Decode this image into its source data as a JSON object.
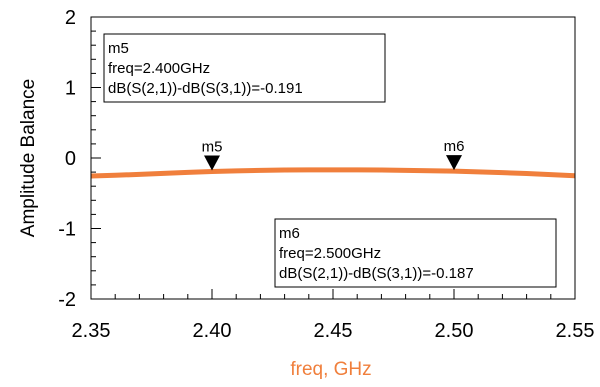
{
  "chart_data": {
    "type": "line",
    "xlabel": "freq, GHz",
    "ylabel": "Amplitude Balance",
    "xlim": [
      2.35,
      2.55
    ],
    "ylim": [
      -2,
      2
    ],
    "x_ticks": [
      2.35,
      2.4,
      2.45,
      2.5,
      2.55
    ],
    "x_tick_labels": [
      "2.35",
      "2.40",
      "2.45",
      "2.50",
      "2.55"
    ],
    "y_ticks": [
      2,
      1,
      0,
      -1,
      -2
    ],
    "y_tick_labels": [
      "2",
      "1",
      "0",
      "-1",
      "-2"
    ],
    "grid": false,
    "colors": {
      "series": "#f07f3c",
      "xlabel": "#f07f3c",
      "axis": "#000000"
    },
    "series": [
      {
        "x": [
          2.35,
          2.36,
          2.37,
          2.38,
          2.39,
          2.4,
          2.41,
          2.42,
          2.43,
          2.44,
          2.45,
          2.46,
          2.47,
          2.48,
          2.49,
          2.5,
          2.51,
          2.52,
          2.53,
          2.54,
          2.55
        ],
        "values": [
          -0.255,
          -0.245,
          -0.232,
          -0.218,
          -0.204,
          -0.191,
          -0.182,
          -0.175,
          -0.17,
          -0.168,
          -0.168,
          -0.169,
          -0.171,
          -0.175,
          -0.18,
          -0.187,
          -0.197,
          -0.208,
          -0.22,
          -0.235,
          -0.252
        ]
      }
    ],
    "markers": [
      {
        "name": "m5",
        "x": 2.4,
        "y": -0.191,
        "box_lines": [
          "m5",
          "freq=2.400GHz",
          "dB(S(2,1))-dB(S(3,1))=-0.191"
        ]
      },
      {
        "name": "m6",
        "x": 2.5,
        "y": -0.187,
        "box_lines": [
          "m6",
          "freq=2.500GHz",
          "dB(S(2,1))-dB(S(3,1))=-0.187"
        ]
      }
    ]
  }
}
